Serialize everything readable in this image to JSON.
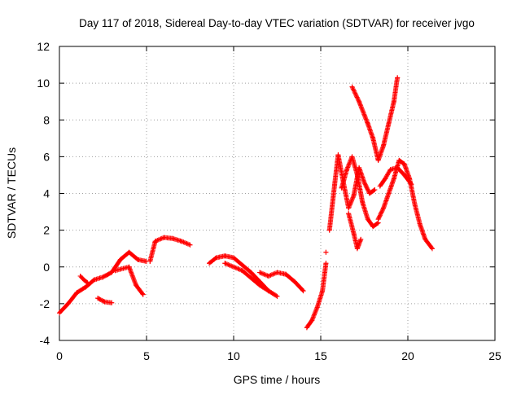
{
  "chart_data": {
    "type": "scatter",
    "title": "Day 117 of 2018, Sidereal Day-to-day VTEC variation (SDTVAR) for receiver jvgo",
    "xlabel": "GPS time / hours",
    "ylabel": "SDTVAR / TECUs",
    "xlim": [
      0,
      25
    ],
    "ylim": [
      -4,
      12
    ],
    "xticks": [
      0,
      5,
      10,
      15,
      20,
      25
    ],
    "yticks": [
      -4,
      -2,
      0,
      2,
      4,
      6,
      8,
      10,
      12
    ],
    "grid": true,
    "legend": "none",
    "marker": "+",
    "color": "#ff0000",
    "series": [
      {
        "x": [
          0.0,
          0.5,
          1.0,
          1.5,
          2.0,
          2.5,
          3.0,
          3.5,
          4.0,
          4.5,
          5.0
        ],
        "y": [
          -2.5,
          -2.0,
          -1.4,
          -1.1,
          -0.7,
          -0.55,
          -0.3,
          0.4,
          0.8,
          0.4,
          0.3
        ]
      },
      {
        "x": [
          1.2,
          1.4,
          1.6
        ],
        "y": [
          -0.5,
          -0.7,
          -0.85
        ]
      },
      {
        "x": [
          2.2,
          2.6,
          3.0
        ],
        "y": [
          -1.7,
          -1.9,
          -1.95
        ]
      },
      {
        "x": [
          3.2,
          3.6,
          4.0,
          4.4,
          4.8
        ],
        "y": [
          -0.2,
          -0.1,
          0.0,
          -1.0,
          -1.5
        ]
      },
      {
        "x": [
          5.2,
          5.5,
          6.0,
          6.5,
          7.0,
          7.5
        ],
        "y": [
          0.3,
          1.4,
          1.6,
          1.55,
          1.4,
          1.2
        ]
      },
      {
        "x": [
          8.6,
          9.0,
          9.5,
          10.0,
          10.5,
          11.0,
          11.5,
          12.0
        ],
        "y": [
          0.2,
          0.5,
          0.6,
          0.5,
          0.1,
          -0.3,
          -0.8,
          -1.3
        ]
      },
      {
        "x": [
          9.5,
          10.0,
          10.5,
          11.0,
          11.5,
          12.0,
          12.5
        ],
        "y": [
          0.2,
          0.0,
          -0.2,
          -0.6,
          -1.0,
          -1.3,
          -1.6
        ]
      },
      {
        "x": [
          11.5,
          12.0,
          12.5,
          13.0,
          13.5,
          14.0
        ],
        "y": [
          -0.3,
          -0.5,
          -0.3,
          -0.4,
          -0.8,
          -1.3
        ]
      },
      {
        "x": [
          14.2,
          14.5,
          14.8,
          15.1,
          15.3
        ],
        "y": [
          -3.3,
          -2.9,
          -2.2,
          -1.3,
          0.2
        ]
      },
      {
        "x": [
          15.3
        ],
        "y": [
          0.8
        ]
      },
      {
        "x": [
          15.5,
          15.8,
          16.0,
          16.3,
          16.6,
          16.9,
          17.2,
          17.5,
          17.8,
          18.1
        ],
        "y": [
          2.0,
          4.5,
          6.1,
          4.6,
          3.2,
          3.9,
          5.4,
          4.6,
          4.0,
          4.2
        ]
      },
      {
        "x": [
          16.2,
          16.5,
          16.8,
          17.1,
          17.4,
          17.7,
          18.0,
          18.3
        ],
        "y": [
          4.3,
          5.3,
          6.0,
          5.0,
          3.5,
          2.6,
          2.2,
          2.4
        ]
      },
      {
        "x": [
          16.6,
          16.9,
          17.1,
          17.3
        ],
        "y": [
          2.9,
          1.8,
          1.0,
          1.5
        ]
      },
      {
        "x": [
          18.3,
          18.6,
          18.9,
          19.2,
          19.5,
          19.8,
          20.1,
          20.4,
          20.7,
          21.0,
          21.4
        ],
        "y": [
          2.6,
          3.2,
          4.0,
          4.8,
          5.8,
          5.6,
          4.8,
          3.4,
          2.3,
          1.5,
          1.0
        ]
      },
      {
        "x": [
          16.8,
          17.2,
          17.7,
          18.0,
          18.3,
          18.6,
          18.9,
          19.2,
          19.4
        ],
        "y": [
          9.8,
          9.0,
          7.8,
          7.0,
          5.8,
          6.6,
          7.8,
          9.0,
          10.3
        ]
      },
      {
        "x": [
          18.4,
          18.7,
          19.0,
          19.4,
          19.8,
          20.2
        ],
        "y": [
          4.4,
          4.8,
          5.3,
          5.4,
          5.0,
          4.5
        ]
      }
    ]
  }
}
